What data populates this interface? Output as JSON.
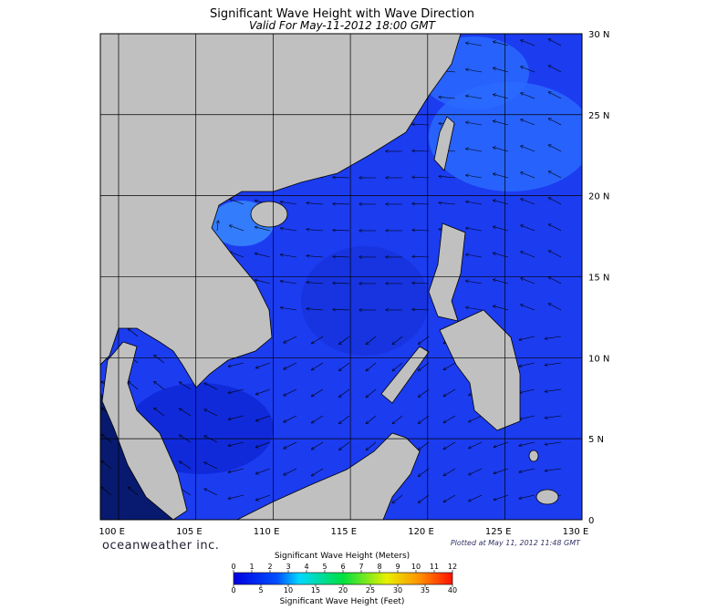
{
  "header": {
    "title": "Significant Wave Height with Wave Direction",
    "subtitle": "Valid For May-11-2012 18:00 GMT"
  },
  "map": {
    "lon_ticks": [
      {
        "value": 100,
        "label": "100 E"
      },
      {
        "value": 105,
        "label": "105 E"
      },
      {
        "value": 110,
        "label": "110 E"
      },
      {
        "value": 115,
        "label": "115 E"
      },
      {
        "value": 120,
        "label": "120 E"
      },
      {
        "value": 125,
        "label": "125 E"
      },
      {
        "value": 130,
        "label": "130 E"
      }
    ],
    "lat_ticks": [
      {
        "value": 30,
        "label": "30 N"
      },
      {
        "value": 25,
        "label": "25 N"
      },
      {
        "value": 20,
        "label": "20 N"
      },
      {
        "value": 15,
        "label": "15 N"
      },
      {
        "value": 10,
        "label": "10 N"
      },
      {
        "value": 5,
        "label": "5 N"
      },
      0
    ]
  },
  "footer": {
    "credit": "oceanweather inc.",
    "plotted": "Plotted at May 11, 2012 11:48 GMT"
  },
  "colorbar": {
    "label_top": "Significant Wave Height (Meters)",
    "ticks_top": [
      0,
      1,
      2,
      3,
      4,
      5,
      6,
      7,
      8,
      9,
      10,
      11,
      12
    ],
    "label_bottom": "Significant Wave Height (Feet)",
    "ticks_bottom": [
      0,
      5,
      10,
      15,
      20,
      25,
      30,
      35,
      40
    ]
  }
}
